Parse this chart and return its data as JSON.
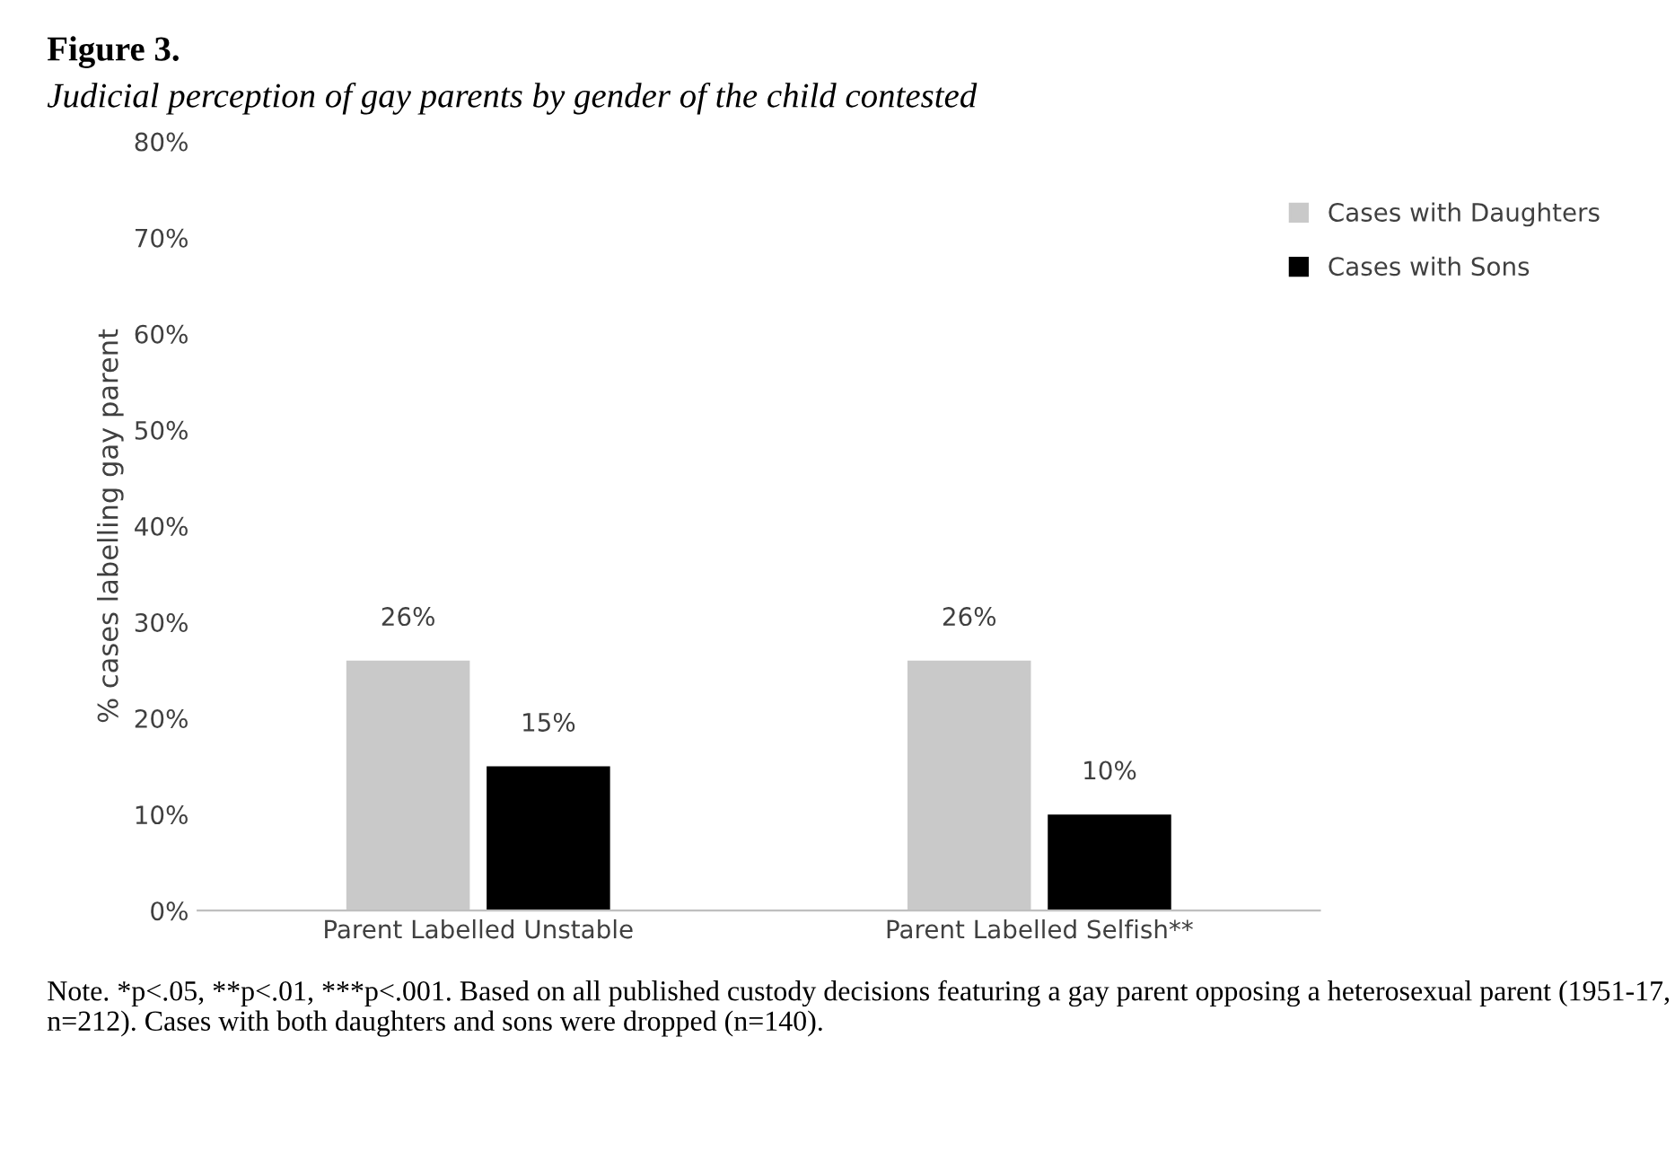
{
  "chart_data": {
    "type": "bar",
    "title": "Figure 3.",
    "subtitle": "Judicial perception of gay parents by gender of the child contested",
    "ylabel": "% cases labelling gay parent",
    "categories": [
      "Parent Labelled Unstable",
      "Parent Labelled Selfish**"
    ],
    "series": [
      {
        "name": "Cases with Daughters",
        "color": "#c9c9c9",
        "values": [
          26,
          26
        ],
        "value_labels": [
          "26%",
          "26%"
        ]
      },
      {
        "name": "Cases with Sons",
        "color": "#000000",
        "values": [
          15,
          10
        ],
        "value_labels": [
          "15%",
          "10%"
        ]
      }
    ],
    "ylim": [
      0,
      80
    ],
    "yticks": [
      {
        "value": 0,
        "label": "0%"
      },
      {
        "value": 10,
        "label": "10%"
      },
      {
        "value": 20,
        "label": "20%"
      },
      {
        "value": 30,
        "label": "30%"
      },
      {
        "value": 40,
        "label": "40%"
      },
      {
        "value": 50,
        "label": "50%"
      },
      {
        "value": 60,
        "label": "60%"
      },
      {
        "value": 70,
        "label": "70%"
      },
      {
        "value": 80,
        "label": "80%"
      }
    ],
    "grid": false,
    "legend": "top right",
    "annotations": [
      "Note. *p<.05, **p<.01, ***p<.001. Based on all published custody decisions featuring a gay parent opposing a heterosexual parent (1951-17, n=212). Cases with both daughters and sons were dropped (n=140)."
    ]
  }
}
